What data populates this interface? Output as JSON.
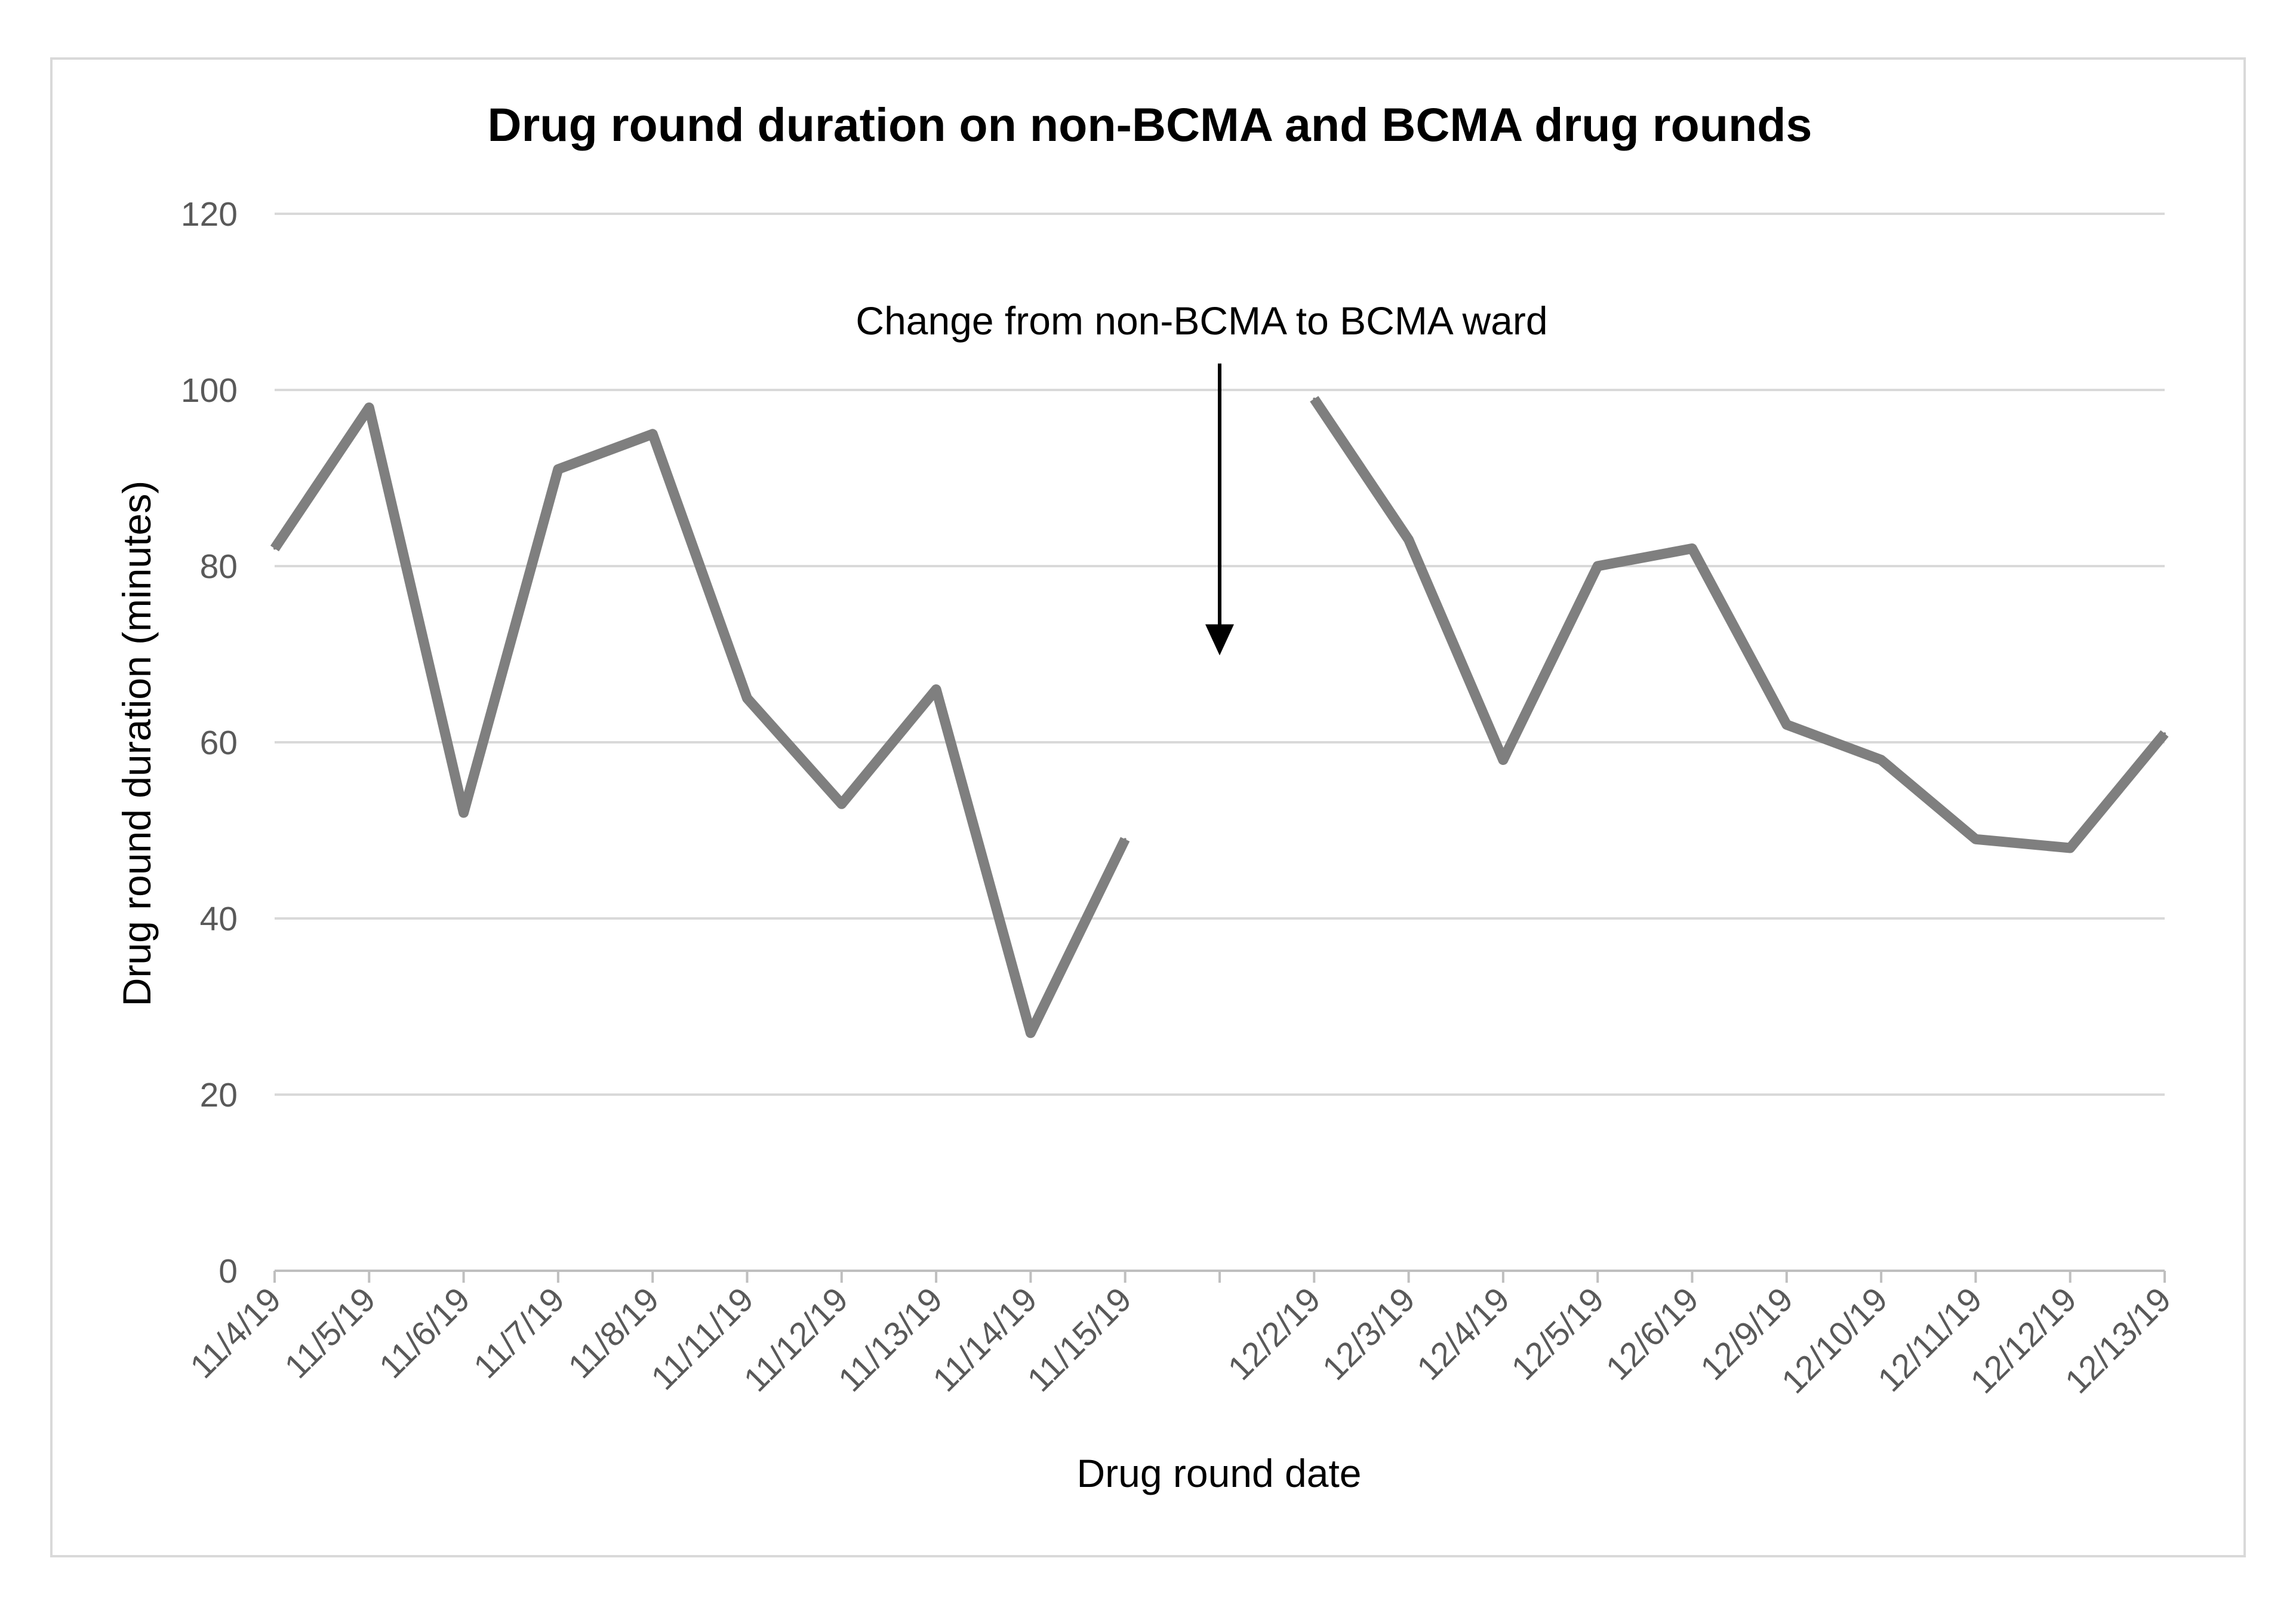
{
  "chart_data": {
    "type": "line",
    "title": "Drug round duration on non-BCMA and BCMA drug rounds",
    "xlabel": "Drug round date",
    "ylabel": "Drug round duration (minutes)",
    "ylim": [
      0,
      120
    ],
    "yticks": [
      0,
      20,
      40,
      60,
      80,
      100,
      120
    ],
    "grid": true,
    "categories": [
      "11/4/19",
      "11/5/19",
      "11/6/19",
      "11/7/19",
      "11/8/19",
      "11/11/19",
      "11/12/19",
      "11/13/19",
      "11/14/19",
      "11/15/19",
      "",
      "12/2/19",
      "12/3/19",
      "12/4/19",
      "12/5/19",
      "12/6/19",
      "12/9/19",
      "12/10/19",
      "12/11/19",
      "12/12/19",
      "12/13/19"
    ],
    "series": [
      {
        "name": "Drug round duration",
        "color": "#7f7f7f",
        "values": [
          82,
          98,
          52,
          91,
          95,
          65,
          53,
          66,
          27,
          49,
          null,
          99,
          83,
          58,
          80,
          82,
          62,
          58,
          49,
          48,
          61
        ]
      }
    ],
    "annotations": [
      {
        "text": "Change from non-BCMA to BCMA ward",
        "category_index": 10,
        "arrow_from_y": 103,
        "arrow_to_y": 70
      }
    ]
  }
}
